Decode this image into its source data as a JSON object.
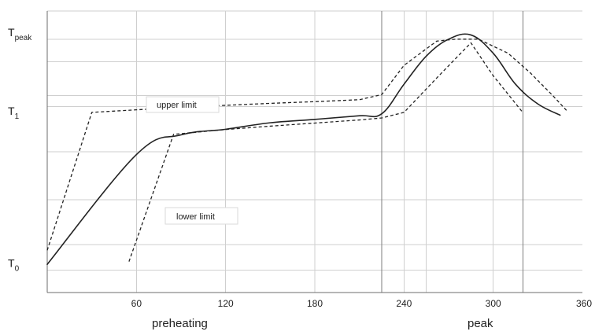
{
  "chart_data": {
    "type": "line",
    "x_ticks": [
      "60",
      "120",
      "180",
      "240",
      "300",
      "360"
    ],
    "xlim": [
      0,
      360
    ],
    "y_ticks": [
      {
        "main": "T",
        "sub": "peak"
      },
      {
        "main": "T",
        "sub": "1"
      },
      {
        "main": "T",
        "sub": "0"
      }
    ],
    "grid": true,
    "annotations": {
      "upper": "upper limit",
      "lower": "lower limit"
    },
    "phase_labels": [
      "preheating",
      "peak"
    ],
    "vertical_markers_x": [
      225,
      320
    ],
    "series": [
      {
        "x": [
          0,
          60,
          90,
          120,
          150,
          180,
          210,
          225,
          240,
          255,
          270,
          285,
          300,
          315,
          330,
          345
        ],
        "y": [
          0.1,
          0.49,
          0.56,
          0.58,
          0.603,
          0.615,
          0.628,
          0.635,
          0.74,
          0.84,
          0.9,
          0.915,
          0.85,
          0.74,
          0.67,
          0.63
        ]
      },
      {
        "x": [
          0,
          30,
          60,
          90,
          120,
          150,
          180,
          210,
          225,
          240,
          262,
          275,
          290,
          310,
          325,
          340,
          350
        ],
        "y": [
          0.15,
          0.64,
          0.649,
          0.658,
          0.665,
          0.672,
          0.678,
          0.685,
          0.703,
          0.807,
          0.893,
          0.9,
          0.9,
          0.85,
          0.78,
          0.7,
          0.643
        ]
      },
      {
        "x": [
          55,
          85,
          120,
          150,
          180,
          210,
          225,
          240,
          262,
          285,
          300,
          320
        ],
        "y": [
          0.11,
          0.562,
          0.579,
          0.591,
          0.602,
          0.613,
          0.62,
          0.64,
          0.762,
          0.887,
          0.77,
          0.639
        ]
      }
    ]
  }
}
